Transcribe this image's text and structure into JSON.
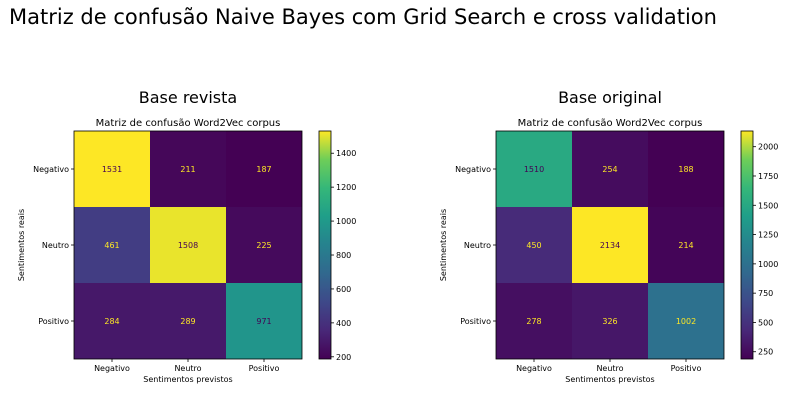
{
  "title": "Matriz de confusão Naive Bayes com Grid Search e cross validation",
  "chart_data": [
    {
      "type": "heatmap",
      "subtitle": "Base revista",
      "title": "Matriz de confusão Word2Vec corpus",
      "xlabel": "Sentimentos previstos",
      "ylabel": "Sentimentos reais",
      "x_categories": [
        "Negativo",
        "Neutro",
        "Positivo"
      ],
      "y_categories": [
        "Negativo",
        "Neutro",
        "Positivo"
      ],
      "values": [
        [
          1531,
          211,
          187
        ],
        [
          461,
          1508,
          225
        ],
        [
          284,
          289,
          971
        ]
      ],
      "colormap": "viridis",
      "colorbar_range": [
        187,
        1531
      ],
      "colorbar_ticks": [
        200,
        400,
        600,
        800,
        1000,
        1200,
        1400
      ]
    },
    {
      "type": "heatmap",
      "subtitle": "Base original",
      "title": "Matriz de confusão Word2Vec corpus",
      "xlabel": "Sentimentos previstos",
      "ylabel": "Sentimentos reais",
      "x_categories": [
        "Negativo",
        "Neutro",
        "Positivo"
      ],
      "y_categories": [
        "Negativo",
        "Neutro",
        "Positivo"
      ],
      "values": [
        [
          1510,
          254,
          188
        ],
        [
          450,
          2134,
          214
        ],
        [
          278,
          326,
          1002
        ]
      ],
      "colormap": "viridis",
      "colorbar_range": [
        188,
        2134
      ],
      "colorbar_ticks": [
        250,
        500,
        750,
        1000,
        1250,
        1500,
        1750,
        2000
      ]
    }
  ]
}
